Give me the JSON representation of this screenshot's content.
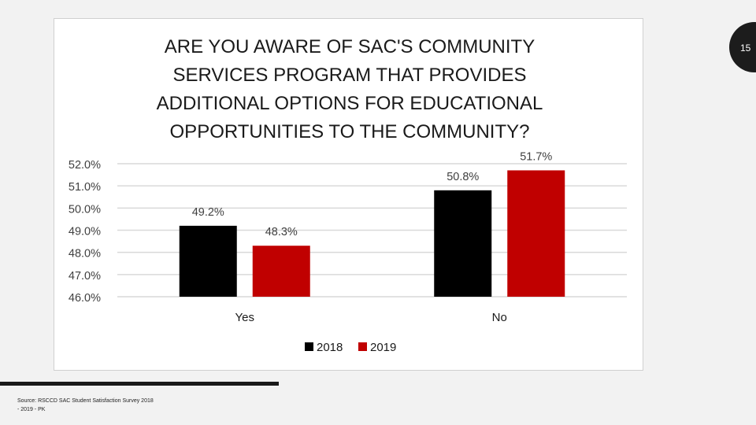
{
  "page": {
    "number": "15"
  },
  "source": {
    "line1": "Source: RSCCD SAC Student Satisfaction Survey 2018",
    "line2": "- 2019 - PK"
  },
  "colors": {
    "series_2018": "#000000",
    "series_2019": "#c00000",
    "grid": "#d9d9d9",
    "text": "#404040"
  },
  "chart_data": {
    "type": "bar",
    "title": "ARE YOU AWARE OF SAC'S COMMUNITY SERVICES PROGRAM THAT PROVIDES ADDITIONAL OPTIONS FOR EDUCATIONAL OPPORTUNITIES TO THE COMMUNITY?",
    "categories": [
      "Yes",
      "No"
    ],
    "series": [
      {
        "name": "2018",
        "values": [
          49.2,
          50.8
        ],
        "labels": [
          "49.2%",
          "50.8%"
        ]
      },
      {
        "name": "2019",
        "values": [
          48.3,
          51.7
        ],
        "labels": [
          "48.3%",
          "51.7%"
        ]
      }
    ],
    "ylim": [
      46,
      52
    ],
    "yticks": [
      46,
      47,
      48,
      49,
      50,
      51,
      52
    ],
    "ytick_labels": [
      "46.0%",
      "47.0%",
      "48.0%",
      "49.0%",
      "50.0%",
      "51.0%",
      "52.0%"
    ],
    "xlabel": "",
    "ylabel": "",
    "legend": "bottom",
    "grid": true
  }
}
